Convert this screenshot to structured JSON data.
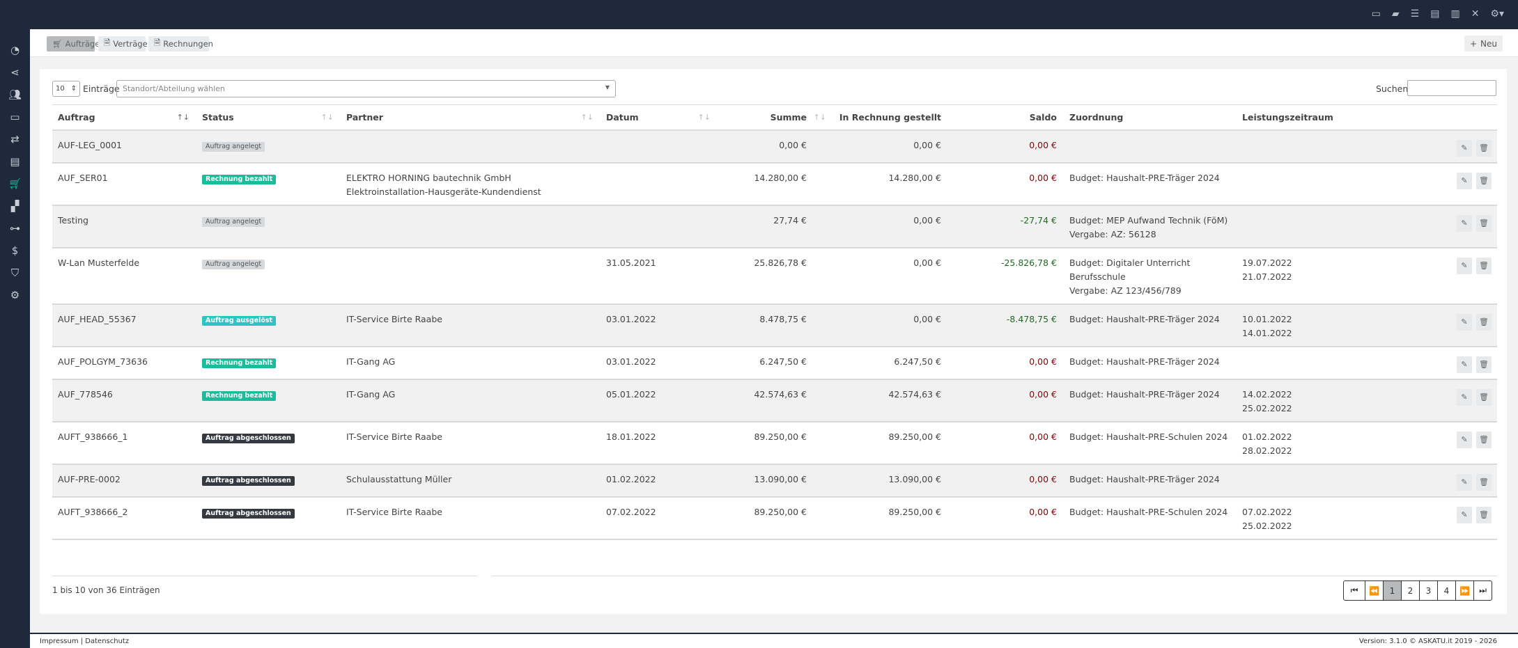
{
  "topbar": {
    "icons": [
      "calendar-icon",
      "briefcase-clock-icon",
      "checklist-icon",
      "clipboard-icon",
      "receipt-icon",
      "tools-icon",
      "gears-dropdown-icon"
    ]
  },
  "sidebar": {
    "items": [
      "dashboard",
      "share",
      "users",
      "monitor",
      "handshake",
      "receipt",
      "cart",
      "boxes",
      "network",
      "money-user",
      "shield",
      "gears"
    ],
    "active": "cart"
  },
  "tabs": [
    {
      "label": "Aufträge",
      "icon": "cart-icon"
    },
    {
      "label": "Verträge",
      "icon": "document-icon"
    },
    {
      "label": "Rechnungen",
      "icon": "document-icon"
    }
  ],
  "new_button": "Neu",
  "controls": {
    "length_value": "10",
    "length_label": "Einträge",
    "standort_placeholder": "Standort/Abteilung wählen",
    "search_label": "Suchen",
    "search_value": ""
  },
  "columns": [
    "Auftrag",
    "Status",
    "Partner",
    "Datum",
    "Summe",
    "In Rechnung gestellt",
    "Saldo",
    "Zuordnung",
    "Leistungszeitraum"
  ],
  "rows": [
    {
      "auftrag": "AUF-LEG_0001",
      "status": "Auftrag angelegt",
      "status_type": "grey",
      "partner": "",
      "datum": "",
      "summe": "0,00 €",
      "rechnung": "0,00 €",
      "saldo": "0,00 €",
      "saldo_type": "zero",
      "zuordnung": "",
      "vergabe": "",
      "von": "",
      "bis": ""
    },
    {
      "auftrag": "AUF_SER01",
      "status": "Rechnung bezahlt",
      "status_type": "green",
      "partner": "ELEKTRO HORNING bautechnik GmbH Elektroinstallation-Hausgeräte-Kundendienst",
      "datum": "",
      "summe": "14.280,00 €",
      "rechnung": "14.280,00 €",
      "saldo": "0,00 €",
      "saldo_type": "zero",
      "zuordnung": "Budget: Haushalt-PRE-Träger 2024",
      "vergabe": "",
      "von": "",
      "bis": ""
    },
    {
      "auftrag": "Testing",
      "status": "Auftrag angelegt",
      "status_type": "grey",
      "partner": "",
      "datum": "",
      "summe": "27,74 €",
      "rechnung": "0,00 €",
      "saldo": "-27,74 €",
      "saldo_type": "neg",
      "zuordnung": "Budget: MEP Aufwand Technik (FöM)",
      "vergabe": "Vergabe: AZ: 56128",
      "von": "",
      "bis": ""
    },
    {
      "auftrag": "W-Lan Musterfelde",
      "status": "Auftrag angelegt",
      "status_type": "grey",
      "partner": "",
      "datum": "31.05.2021",
      "summe": "25.826,78 €",
      "rechnung": "0,00 €",
      "saldo": "-25.826,78 €",
      "saldo_type": "neg",
      "zuordnung": "Budget: Digitaler Unterricht Berufsschule",
      "vergabe": "Vergabe: AZ 123/456/789",
      "von": "19.07.2022",
      "bis": "21.07.2022"
    },
    {
      "auftrag": "AUF_HEAD_55367",
      "status": "Auftrag ausgelöst",
      "status_type": "cyan",
      "partner": "IT-Service Birte Raabe",
      "datum": "03.01.2022",
      "summe": "8.478,75 €",
      "rechnung": "0,00 €",
      "saldo": "-8.478,75 €",
      "saldo_type": "neg",
      "zuordnung": "Budget: Haushalt-PRE-Träger 2024",
      "vergabe": "",
      "von": "10.01.2022",
      "bis": "14.01.2022"
    },
    {
      "auftrag": "AUF_POLGYM_73636",
      "status": "Rechnung bezahlt",
      "status_type": "green",
      "partner": "IT-Gang AG",
      "datum": "03.01.2022",
      "summe": "6.247,50 €",
      "rechnung": "6.247,50 €",
      "saldo": "0,00 €",
      "saldo_type": "zero",
      "zuordnung": "Budget: Haushalt-PRE-Träger 2024",
      "vergabe": "",
      "von": "",
      "bis": ""
    },
    {
      "auftrag": "AUF_778546",
      "status": "Rechnung bezahlt",
      "status_type": "green",
      "partner": "IT-Gang AG",
      "datum": "05.01.2022",
      "summe": "42.574,63 €",
      "rechnung": "42.574,63 €",
      "saldo": "0,00 €",
      "saldo_type": "zero",
      "zuordnung": "Budget: Haushalt-PRE-Träger 2024",
      "vergabe": "",
      "von": "14.02.2022",
      "bis": "25.02.2022"
    },
    {
      "auftrag": "AUFT_938666_1",
      "status": "Auftrag abgeschlossen",
      "status_type": "dark",
      "partner": "IT-Service Birte Raabe",
      "datum": "18.01.2022",
      "summe": "89.250,00 €",
      "rechnung": "89.250,00 €",
      "saldo": "0,00 €",
      "saldo_type": "zero",
      "zuordnung": "Budget: Haushalt-PRE-Schulen 2024",
      "vergabe": "",
      "von": "01.02.2022",
      "bis": "28.02.2022"
    },
    {
      "auftrag": "AUF-PRE-0002",
      "status": "Auftrag abgeschlossen",
      "status_type": "dark",
      "partner": "Schulausstattung Müller",
      "datum": "01.02.2022",
      "summe": "13.090,00 €",
      "rechnung": "13.090,00 €",
      "saldo": "0,00 €",
      "saldo_type": "zero",
      "zuordnung": "Budget: Haushalt-PRE-Träger 2024",
      "vergabe": "",
      "von": "",
      "bis": ""
    },
    {
      "auftrag": "AUFT_938666_2",
      "status": "Auftrag abgeschlossen",
      "status_type": "dark",
      "partner": "IT-Service Birte Raabe",
      "datum": "07.02.2022",
      "summe": "89.250,00 €",
      "rechnung": "89.250,00 €",
      "saldo": "0,00 €",
      "saldo_type": "zero",
      "zuordnung": "Budget: Haushalt-PRE-Schulen 2024",
      "vergabe": "",
      "von": "07.02.2022",
      "bis": "25.02.2022"
    }
  ],
  "info": "1 bis 10 von 36 Einträgen",
  "pagination": {
    "pages": [
      "1",
      "2",
      "3",
      "4"
    ],
    "current": "1"
  },
  "footer": {
    "left": "Impressum | Datenschutz",
    "right": "Version: 3.1.0   © ASKATU.it 2019 - 2026"
  },
  "colors": {
    "topbar": "#1e293b",
    "accent": "#1abc9c",
    "saldo_zero": "#8b0000",
    "saldo_negative": "#1f6b1f"
  }
}
